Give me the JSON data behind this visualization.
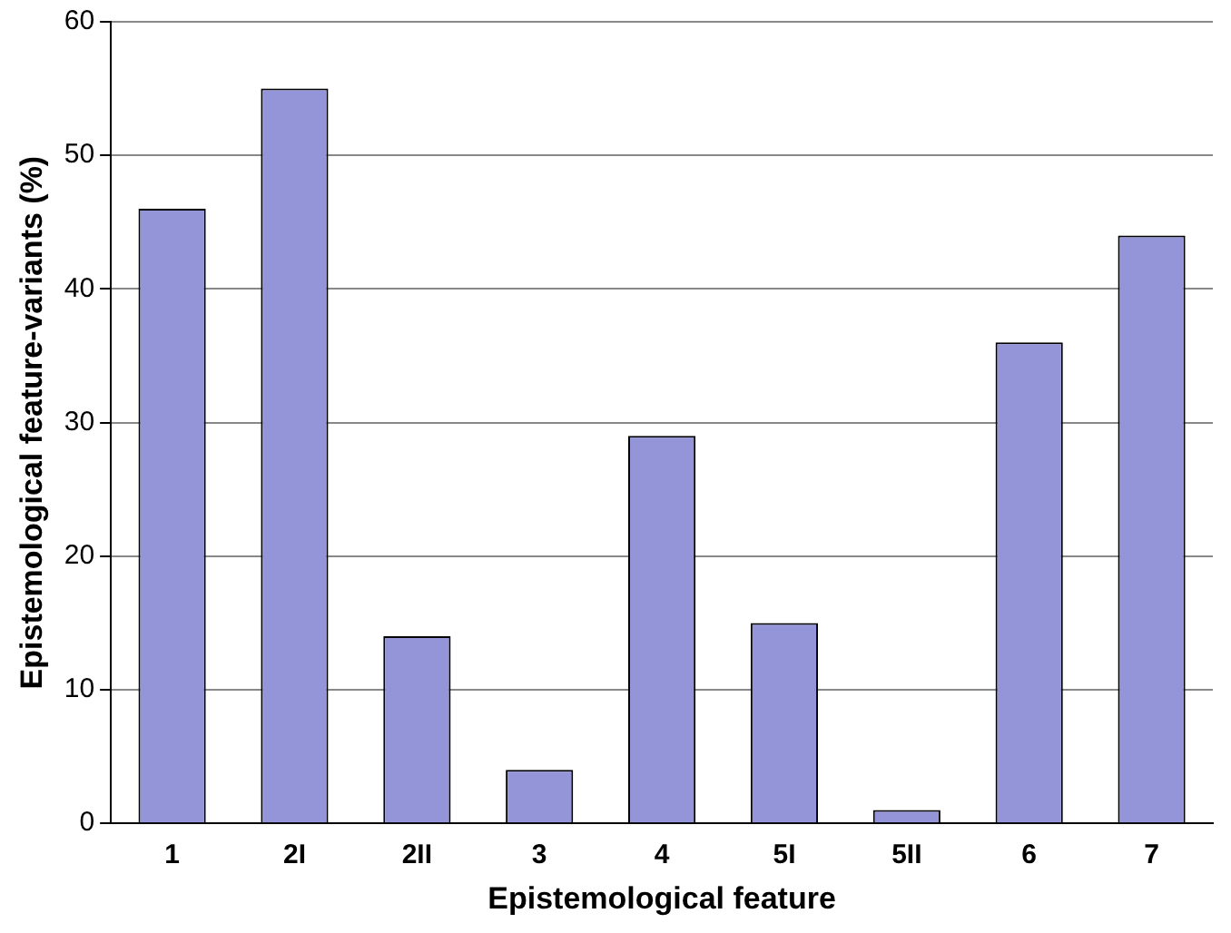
{
  "chart_data": {
    "type": "bar",
    "xlabel": "Epistemological feature",
    "ylabel": "Epistemological feature-variants (%)",
    "categories": [
      "1",
      "2I",
      "2II",
      "3",
      "4",
      "5I",
      "5II",
      "6",
      "7"
    ],
    "values": [
      46,
      55,
      14,
      4,
      29,
      15,
      1,
      36,
      44
    ],
    "color": "#9494d8",
    "ylim": [
      0,
      60
    ],
    "yticks": [
      0,
      10,
      20,
      30,
      40,
      50,
      60
    ],
    "grid": "y",
    "legend": false
  }
}
